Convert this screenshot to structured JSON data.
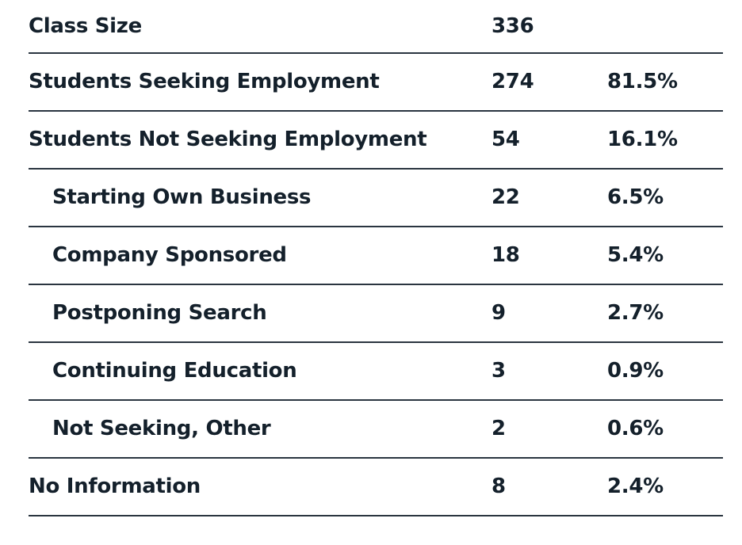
{
  "rows": [
    {
      "label": "Class Size",
      "count": "336",
      "pct": ""
    },
    {
      "label": "Students Seeking Employment",
      "count": "274",
      "pct": "81.5%"
    },
    {
      "label": "Students Not Seeking Employment",
      "count": "54",
      "pct": "16.1%"
    },
    {
      "label": "Starting Own Business",
      "count": "22",
      "pct": "6.5%"
    },
    {
      "label": "Company Sponsored",
      "count": "18",
      "pct": "5.4%"
    },
    {
      "label": "Postponing Search",
      "count": "9",
      "pct": "2.7%"
    },
    {
      "label": "Continuing Education",
      "count": "3",
      "pct": "0.9%"
    },
    {
      "label": "Not Seeking, Other",
      "count": "2",
      "pct": "0.6%"
    },
    {
      "label": "No Information",
      "count": "8",
      "pct": "2.4%"
    }
  ]
}
